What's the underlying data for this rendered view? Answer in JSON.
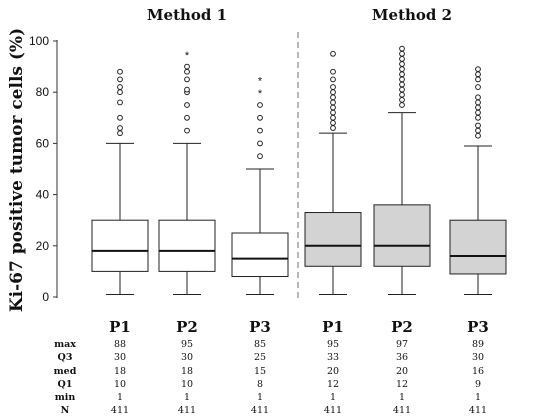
{
  "chart_data": {
    "type": "boxplot",
    "ylabel": "Ki-67 positive tumor cells (%)",
    "ylim": [
      0,
      100
    ],
    "yticks": [
      0,
      20,
      40,
      60,
      80,
      100
    ],
    "groups": [
      {
        "name": "Method 1",
        "fill": "#ffffff"
      },
      {
        "name": "Method 2",
        "fill": "#d3d3d3"
      }
    ],
    "categories": [
      "P1",
      "P2",
      "P3",
      "P1",
      "P2",
      "P3"
    ],
    "category_group": [
      0,
      0,
      0,
      1,
      1,
      1
    ],
    "group_divider": "dashed",
    "boxes": [
      {
        "label": "P1",
        "group": "Method 1",
        "max": 88,
        "q3": 30,
        "med": 18,
        "q1": 10,
        "min": 1,
        "n": 411,
        "whisker_high": 60,
        "outliers": [
          64,
          66,
          70,
          76,
          80,
          82,
          85,
          88
        ],
        "extremes": []
      },
      {
        "label": "P2",
        "group": "Method 1",
        "max": 95,
        "q3": 30,
        "med": 18,
        "q1": 10,
        "min": 1,
        "n": 411,
        "whisker_high": 60,
        "outliers": [
          65,
          70,
          75,
          80,
          81,
          85,
          88,
          90
        ],
        "extremes": [
          95
        ]
      },
      {
        "label": "P3",
        "group": "Method 1",
        "max": 85,
        "q3": 25,
        "med": 15,
        "q1": 8,
        "min": 1,
        "n": 411,
        "whisker_high": 50,
        "outliers": [
          55,
          60,
          65,
          70,
          75
        ],
        "extremes": [
          80,
          85
        ]
      },
      {
        "label": "P1",
        "group": "Method 2",
        "max": 95,
        "q3": 33,
        "med": 20,
        "q1": 12,
        "min": 1,
        "n": 411,
        "whisker_high": 64,
        "outliers": [
          66,
          68,
          70,
          72,
          74,
          76,
          78,
          80,
          82,
          85,
          88,
          95
        ],
        "extremes": []
      },
      {
        "label": "P2",
        "group": "Method 2",
        "max": 97,
        "q3": 36,
        "med": 20,
        "q1": 12,
        "min": 1,
        "n": 411,
        "whisker_high": 72,
        "outliers": [
          75,
          77,
          79,
          81,
          83,
          85,
          87,
          89,
          91,
          93,
          95,
          97
        ],
        "extremes": []
      },
      {
        "label": "P3",
        "group": "Method 2",
        "max": 89,
        "q3": 30,
        "med": 16,
        "q1": 9,
        "min": 1,
        "n": 411,
        "whisker_high": 59,
        "outliers": [
          63,
          65,
          67,
          70,
          72,
          74,
          76,
          78,
          82,
          85,
          87,
          89
        ],
        "extremes": []
      }
    ],
    "stats_table": {
      "rows": [
        {
          "label": "max",
          "values": [
            "88",
            "95",
            "85",
            "95",
            "97",
            "89"
          ]
        },
        {
          "label": "Q3",
          "values": [
            "30",
            "30",
            "25",
            "33",
            "36",
            "30"
          ]
        },
        {
          "label": "med",
          "values": [
            "18",
            "18",
            "15",
            "20",
            "20",
            "16"
          ]
        },
        {
          "label": "Q1",
          "values": [
            "10",
            "10",
            "8",
            "12",
            "12",
            "9"
          ]
        },
        {
          "label": "min",
          "values": [
            "1",
            "1",
            "1",
            "1",
            "1",
            "1"
          ]
        },
        {
          "label": "N",
          "values": [
            "411",
            "411",
            "411",
            "411",
            "411",
            "411"
          ]
        }
      ]
    }
  }
}
